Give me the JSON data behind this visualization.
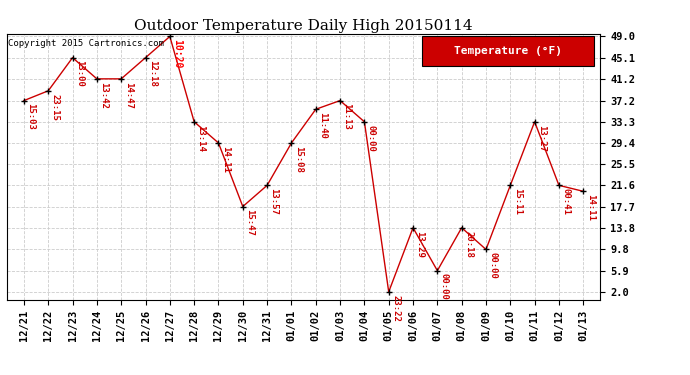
{
  "title": "Outdoor Temperature Daily High 20150114",
  "copyright": "Copyright 2015 Cartronics.com",
  "legend_label": "Temperature (°F)",
  "x_labels": [
    "12/21",
    "12/22",
    "12/23",
    "12/24",
    "12/25",
    "12/26",
    "12/27",
    "12/28",
    "12/29",
    "12/30",
    "12/31",
    "01/01",
    "01/02",
    "01/03",
    "01/04",
    "01/05",
    "01/06",
    "01/07",
    "01/08",
    "01/09",
    "01/10",
    "01/11",
    "01/12",
    "01/13"
  ],
  "y_values": [
    37.2,
    39.0,
    45.1,
    41.2,
    41.2,
    45.1,
    49.0,
    33.3,
    29.4,
    17.7,
    21.6,
    29.4,
    35.6,
    37.2,
    33.3,
    2.0,
    13.8,
    5.9,
    13.8,
    9.8,
    21.6,
    33.3,
    21.6,
    20.5
  ],
  "point_labels": [
    "15:03",
    "23:15",
    "13:00",
    "13:42",
    "14:47",
    "12:18",
    "10:20",
    "13:14",
    "14:11",
    "15:47",
    "13:57",
    "15:08",
    "11:40",
    "11:13",
    "00:00",
    "23:22",
    "13:29",
    "00:00",
    "20:18",
    "00:00",
    "15:11",
    "13:27",
    "00:41",
    "14:11"
  ],
  "highlight_index": 6,
  "y_ticks": [
    2.0,
    5.9,
    9.8,
    13.8,
    17.7,
    21.6,
    25.5,
    29.4,
    33.3,
    37.2,
    41.2,
    45.1,
    49.0
  ],
  "ylim_min": 2.0,
  "ylim_max": 49.0,
  "line_color": "#cc0000",
  "label_color": "#cc0000",
  "highlight_label_color": "#ff0000",
  "background_color": "#ffffff",
  "grid_color": "#cccccc",
  "title_fontsize": 11,
  "label_fontsize": 6.5,
  "tick_fontsize": 7.5,
  "legend_bg": "#cc0000",
  "legend_text_color": "#ffffff",
  "legend_fontsize": 8
}
